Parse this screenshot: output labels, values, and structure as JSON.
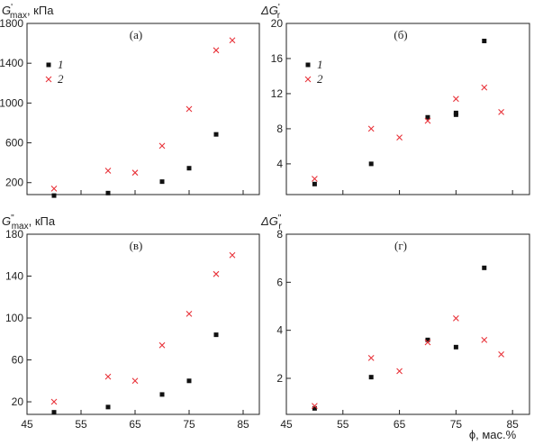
{
  "colors": {
    "series1": "#111111",
    "series2": "#e8333a",
    "axis": "#222222"
  },
  "chart_data": [
    {
      "id": "a",
      "type": "scatter",
      "panel_label": "(а)",
      "ylabel": {
        "main": "G",
        "sup": "'",
        "sub": "max",
        "unit": ", кПа"
      },
      "xlabel": "",
      "xlim": [
        45,
        88
      ],
      "ylim": [
        80,
        1800
      ],
      "xticks": [
        45,
        55,
        65,
        75,
        85
      ],
      "yticks": [
        200,
        600,
        1000,
        1400,
        1800
      ],
      "show_xtick_labels": false,
      "legend": {
        "show": true,
        "position": "top-left",
        "labels": [
          "1",
          "2"
        ]
      },
      "series": [
        {
          "name": "1",
          "marker": "square",
          "x": [
            50,
            60,
            70,
            75,
            80
          ],
          "y": [
            70,
            95,
            210,
            345,
            685
          ]
        },
        {
          "name": "2",
          "marker": "cross",
          "x": [
            50,
            60,
            65,
            70,
            75,
            80,
            83
          ],
          "y": [
            140,
            320,
            300,
            570,
            940,
            1530,
            1630
          ]
        }
      ]
    },
    {
      "id": "b",
      "type": "scatter",
      "panel_label": "(б)",
      "ylabel": {
        "main": "ΔG",
        "sup": "'",
        "sub": "r",
        "unit": ""
      },
      "xlabel": "",
      "xlim": [
        45,
        88
      ],
      "ylim": [
        0.5,
        20
      ],
      "xticks": [
        45,
        55,
        65,
        75,
        85
      ],
      "yticks": [
        4,
        8,
        12,
        16,
        20
      ],
      "show_xtick_labels": false,
      "legend": {
        "show": true,
        "position": "top-left",
        "labels": [
          "1",
          "2"
        ]
      },
      "series": [
        {
          "name": "1",
          "marker": "square",
          "x": [
            50,
            60,
            70,
            75,
            75,
            80
          ],
          "y": [
            1.7,
            4.0,
            9.3,
            9.6,
            9.8,
            18.0
          ]
        },
        {
          "name": "2",
          "marker": "cross",
          "x": [
            50,
            60,
            65,
            70,
            75,
            80,
            83
          ],
          "y": [
            2.3,
            8.0,
            7.0,
            8.9,
            11.4,
            12.7,
            9.9
          ]
        }
      ]
    },
    {
      "id": "c",
      "type": "scatter",
      "panel_label": "(в)",
      "ylabel": {
        "main": "G",
        "sup": "\"",
        "sub": "max",
        "unit": ", кПа"
      },
      "xlabel": "",
      "xlim": [
        45,
        88
      ],
      "ylim": [
        8,
        180
      ],
      "xticks": [
        45,
        55,
        65,
        75,
        85
      ],
      "yticks": [
        20,
        60,
        100,
        140,
        180
      ],
      "show_xtick_labels": true,
      "legend": {
        "show": false
      },
      "series": [
        {
          "name": "1",
          "marker": "square",
          "x": [
            50,
            60,
            70,
            75,
            80
          ],
          "y": [
            10,
            15,
            27,
            40,
            84
          ]
        },
        {
          "name": "2",
          "marker": "cross",
          "x": [
            50,
            60,
            65,
            70,
            75,
            80,
            83
          ],
          "y": [
            20,
            44,
            40,
            74,
            104,
            142,
            160
          ]
        }
      ]
    },
    {
      "id": "d",
      "type": "scatter",
      "panel_label": "(г)",
      "ylabel": {
        "main": "ΔG",
        "sup": "\"",
        "sub": "r",
        "unit": ""
      },
      "xlabel": "ϕ, мас.%",
      "xlim": [
        45,
        88
      ],
      "ylim": [
        0.5,
        8
      ],
      "xticks": [
        45,
        55,
        65,
        75,
        85
      ],
      "yticks": [
        2,
        4,
        6,
        8
      ],
      "show_xtick_labels": true,
      "legend": {
        "show": false
      },
      "series": [
        {
          "name": "1",
          "marker": "square",
          "x": [
            50,
            60,
            70,
            75,
            80
          ],
          "y": [
            0.75,
            2.05,
            3.6,
            3.3,
            6.6
          ]
        },
        {
          "name": "2",
          "marker": "cross",
          "x": [
            50,
            60,
            65,
            70,
            75,
            80,
            83
          ],
          "y": [
            0.85,
            2.85,
            2.3,
            3.5,
            4.5,
            3.6,
            3.0
          ]
        }
      ]
    }
  ],
  "shared_xlabel": "ϕ, мас.%"
}
